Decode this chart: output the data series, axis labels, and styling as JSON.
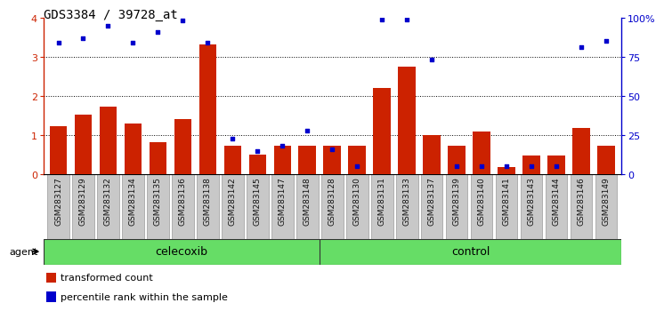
{
  "title": "GDS3384 / 39728_at",
  "samples": [
    "GSM283127",
    "GSM283129",
    "GSM283132",
    "GSM283134",
    "GSM283135",
    "GSM283136",
    "GSM283138",
    "GSM283142",
    "GSM283145",
    "GSM283147",
    "GSM283148",
    "GSM283128",
    "GSM283130",
    "GSM283131",
    "GSM283133",
    "GSM283137",
    "GSM283139",
    "GSM283140",
    "GSM283141",
    "GSM283143",
    "GSM283144",
    "GSM283146",
    "GSM283149"
  ],
  "red_values": [
    1.22,
    1.52,
    1.72,
    1.3,
    0.82,
    1.4,
    3.32,
    0.72,
    0.5,
    0.72,
    0.72,
    0.72,
    0.72,
    2.2,
    2.75,
    1.0,
    0.72,
    1.1,
    0.18,
    0.47,
    0.47,
    1.18,
    0.72
  ],
  "blue_values_pct": [
    84,
    87,
    95,
    84,
    91,
    98,
    84,
    23,
    15,
    18,
    28,
    16,
    5,
    99,
    99,
    73,
    5,
    5,
    5,
    5,
    5,
    81,
    85
  ],
  "group1_label": "celecoxib",
  "group2_label": "control",
  "group1_count": 11,
  "group2_count": 12,
  "left_ylim": [
    0,
    4
  ],
  "right_ylim": [
    0,
    100
  ],
  "left_yticks": [
    0,
    1,
    2,
    3,
    4
  ],
  "right_yticks": [
    0,
    25,
    50,
    75,
    100
  ],
  "bar_color": "#CC2200",
  "dot_color": "#0000CC",
  "agent_label": "agent",
  "legend1": "transformed count",
  "legend2": "percentile rank within the sample",
  "group_bg_color": "#66DD66",
  "grid_lines": [
    1,
    2,
    3
  ]
}
